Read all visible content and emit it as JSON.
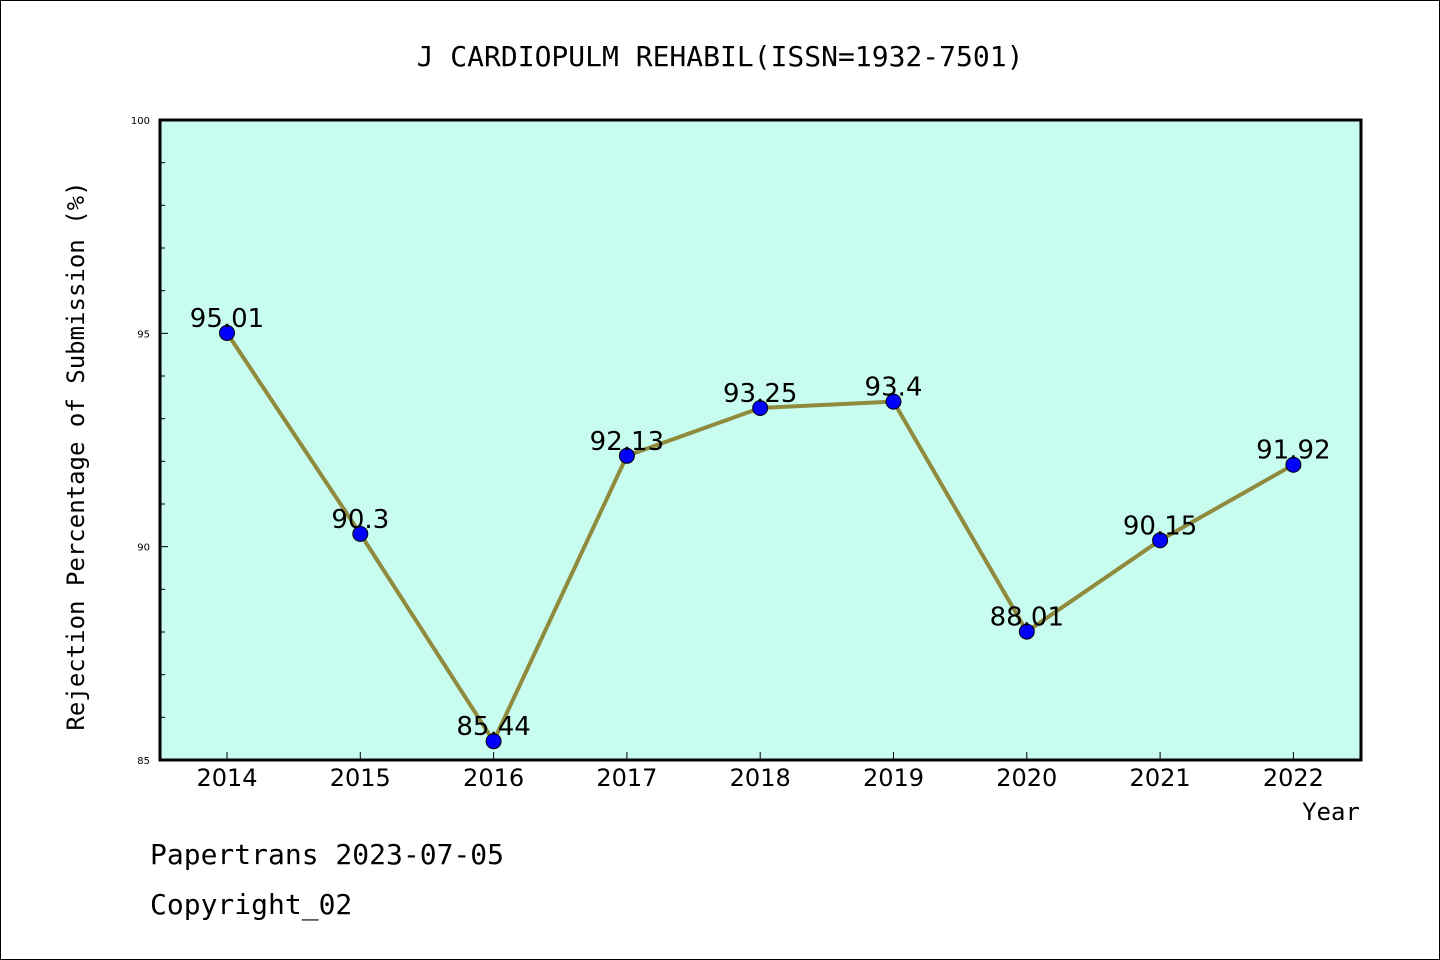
{
  "chart_data": {
    "type": "line",
    "title": "J CARDIOPULM REHABIL(ISSN=1932-7501)",
    "xlabel": "Year",
    "ylabel": "Rejection Percentage of Submission (%)",
    "categories": [
      "2014",
      "2015",
      "2016",
      "2017",
      "2018",
      "2019",
      "2020",
      "2021",
      "2022"
    ],
    "values": [
      95.01,
      90.3,
      85.44,
      92.13,
      93.25,
      93.4,
      88.01,
      90.15,
      91.92
    ],
    "data_labels": [
      "95.01",
      "90.3",
      "85.44",
      "92.13",
      "93.25",
      "93.4",
      "88.01",
      "90.15",
      "91.92"
    ],
    "ylim": [
      85,
      100
    ],
    "y_ticks": [
      85,
      90,
      95,
      100
    ],
    "grid": false,
    "colors": {
      "plot_background": "#c8fcee",
      "line": "#8f8a3c",
      "marker": "#0000ff"
    }
  },
  "footer": {
    "line1": "Papertrans 2023-07-05",
    "line2": "Copyright_02"
  }
}
